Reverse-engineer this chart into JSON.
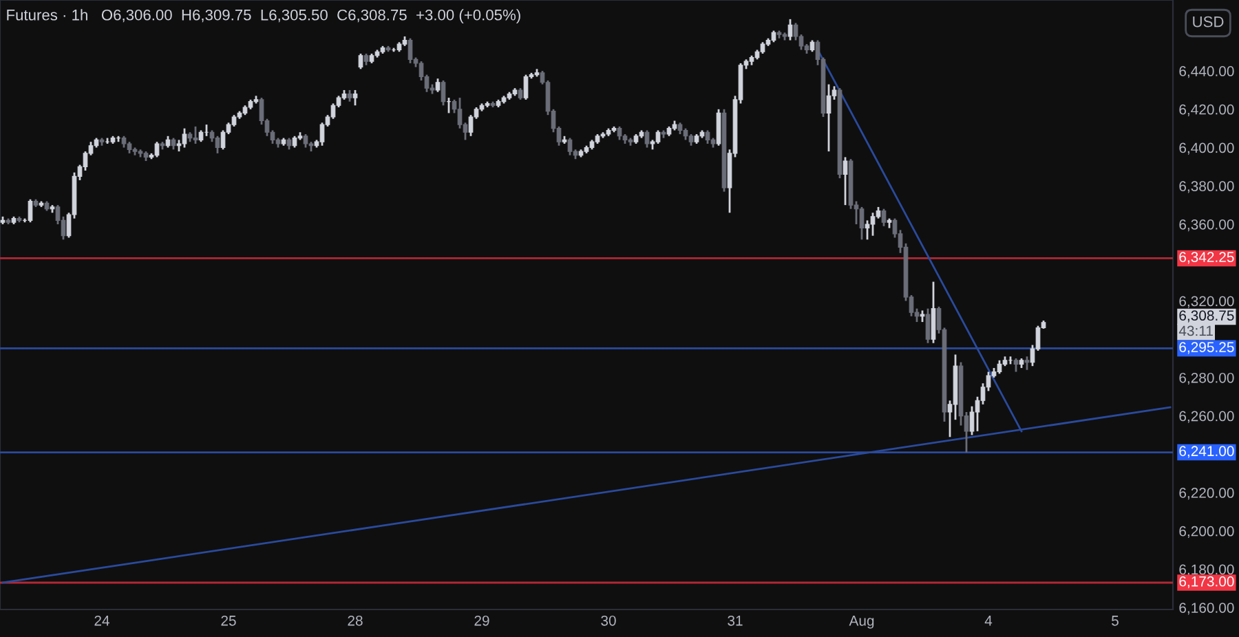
{
  "chart_data": {
    "type": "candlestick",
    "title": "Futures · 1h",
    "subtitle": "O6,306.00  H6,309.75  L6,305.50  C6,308.75  +3.00 (+0.05%)",
    "categories": [
      null,
      null,
      null,
      null,
      null,
      null,
      null,
      null,
      null,
      null,
      null,
      null,
      null,
      null,
      null,
      null,
      null,
      null,
      "24",
      null,
      null,
      null,
      null,
      null,
      null,
      null,
      null,
      null,
      null,
      null,
      null,
      null,
      null,
      null,
      null,
      null,
      null,
      null,
      null,
      null,
      null,
      "25",
      null,
      null,
      null,
      null,
      null,
      null,
      null,
      null,
      null,
      null,
      null,
      null,
      null,
      null,
      null,
      null,
      null,
      null,
      null,
      null,
      null,
      null,
      "28",
      null,
      null,
      null,
      null,
      null,
      null,
      null,
      null,
      null,
      null,
      null,
      null,
      null,
      null,
      null,
      null,
      null,
      null,
      null,
      null,
      null,
      null,
      "29",
      null,
      null,
      null,
      null,
      null,
      null,
      null,
      null,
      null,
      null,
      null,
      null,
      null,
      null,
      null,
      null,
      null,
      null,
      null,
      null,
      null,
      null,
      "30",
      null,
      null,
      null,
      null,
      null,
      null,
      null,
      null,
      null,
      null,
      null,
      null,
      null,
      null,
      null,
      null,
      null,
      null,
      null,
      null,
      null,
      null,
      "31",
      null,
      null,
      null,
      null,
      null,
      null,
      null,
      null,
      null,
      null,
      null,
      null,
      null,
      null,
      null,
      null,
      null,
      null,
      null,
      null,
      null,
      null,
      "Aug",
      null,
      null,
      null,
      null,
      null,
      null,
      null,
      null,
      null,
      null,
      null,
      null,
      null,
      null,
      null,
      null,
      null,
      null,
      null,
      null,
      null,
      null,
      "4",
      null,
      null,
      null,
      null,
      null,
      null,
      null,
      null,
      null,
      null,
      null,
      null,
      null,
      null,
      null,
      null,
      null,
      null,
      null,
      null,
      null,
      null,
      "5",
      null,
      null,
      null,
      null,
      null,
      null,
      null,
      null,
      null,
      null
    ],
    "ohlc": [
      [
        6361,
        6364,
        6360,
        6362
      ],
      [
        6362,
        6363,
        6360,
        6361
      ],
      [
        6361,
        6364,
        6360,
        6363
      ],
      [
        6363,
        6364,
        6361,
        6362
      ],
      [
        6362,
        6363,
        6361,
        6362
      ],
      [
        6362,
        6373,
        6361,
        6372
      ],
      [
        6372,
        6373,
        6369,
        6370
      ],
      [
        6370,
        6372,
        6369,
        6371
      ],
      [
        6371,
        6372,
        6367,
        6368
      ],
      [
        6368,
        6370,
        6366,
        6369
      ],
      [
        6369,
        6370,
        6360,
        6362
      ],
      [
        6362,
        6364,
        6352,
        6354
      ],
      [
        6354,
        6366,
        6353,
        6365
      ],
      [
        6365,
        6387,
        6363,
        6385
      ],
      [
        6385,
        6391,
        6383,
        6390
      ],
      [
        6390,
        6398,
        6388,
        6397
      ],
      [
        6397,
        6403,
        6396,
        6401
      ],
      [
        6401,
        6405,
        6400,
        6404
      ],
      [
        6404,
        6405,
        6401,
        6403
      ],
      [
        6403,
        6405,
        6402,
        6403
      ],
      [
        6403,
        6406,
        6402,
        6405
      ],
      [
        6405,
        6406,
        6403,
        6405
      ],
      [
        6405,
        6406,
        6400,
        6402
      ],
      [
        6402,
        6403,
        6397,
        6399
      ],
      [
        6399,
        6400,
        6396,
        6398
      ],
      [
        6398,
        6399,
        6395,
        6397
      ],
      [
        6397,
        6398,
        6393,
        6395
      ],
      [
        6395,
        6397,
        6394,
        6396
      ],
      [
        6396,
        6403,
        6395,
        6402
      ],
      [
        6402,
        6403,
        6399,
        6401
      ],
      [
        6401,
        6406,
        6400,
        6404
      ],
      [
        6404,
        6405,
        6399,
        6401
      ],
      [
        6401,
        6404,
        6398,
        6402
      ],
      [
        6402,
        6410,
        6400,
        6407
      ],
      [
        6407,
        6408,
        6403,
        6405
      ],
      [
        6405,
        6411,
        6402,
        6404
      ],
      [
        6404,
        6409,
        6403,
        6408
      ],
      [
        6408,
        6412,
        6406,
        6408
      ],
      [
        6408,
        6409,
        6403,
        6405
      ],
      [
        6405,
        6406,
        6397,
        6400
      ],
      [
        6400,
        6409,
        6399,
        6408
      ],
      [
        6408,
        6413,
        6407,
        6412
      ],
      [
        6412,
        6417,
        6411,
        6416
      ],
      [
        6416,
        6419,
        6415,
        6418
      ],
      [
        6418,
        6422,
        6417,
        6421
      ],
      [
        6421,
        6425,
        6420,
        6424
      ],
      [
        6424,
        6427,
        6423,
        6425
      ],
      [
        6425,
        6426,
        6412,
        6414
      ],
      [
        6414,
        6415,
        6406,
        6408
      ],
      [
        6408,
        6409,
        6402,
        6404
      ],
      [
        6404,
        6405,
        6400,
        6402
      ],
      [
        6402,
        6405,
        6401,
        6404
      ],
      [
        6404,
        6405,
        6399,
        6401
      ],
      [
        6401,
        6406,
        6400,
        6405
      ],
      [
        6405,
        6408,
        6404,
        6406
      ],
      [
        6406,
        6407,
        6400,
        6402
      ],
      [
        6402,
        6403,
        6398,
        6401
      ],
      [
        6401,
        6404,
        6400,
        6403
      ],
      [
        6403,
        6413,
        6401,
        6412
      ],
      [
        6412,
        6417,
        6411,
        6416
      ],
      [
        6416,
        6423,
        6415,
        6422
      ],
      [
        6422,
        6427,
        6421,
        6426
      ],
      [
        6426,
        6430,
        6425,
        6428
      ],
      [
        6428,
        6430,
        6424,
        6426
      ],
      [
        6426,
        6430,
        6422,
        6428
      ],
      [
        6442,
        6449,
        6441,
        6448
      ],
      [
        6448,
        6449,
        6443,
        6445
      ],
      [
        6445,
        6449,
        6444,
        6448
      ],
      [
        6448,
        6451,
        6447,
        6450
      ],
      [
        6450,
        6453,
        6449,
        6452
      ],
      [
        6452,
        6453,
        6450,
        6451
      ],
      [
        6451,
        6452,
        6450,
        6451
      ],
      [
        6451,
        6455,
        6450,
        6454
      ],
      [
        6454,
        6458,
        6453,
        6456
      ],
      [
        6456,
        6457,
        6444,
        6446
      ],
      [
        6446,
        6447,
        6442,
        6444
      ],
      [
        6444,
        6445,
        6435,
        6437
      ],
      [
        6437,
        6438,
        6429,
        6431
      ],
      [
        6431,
        6433,
        6428,
        6430
      ],
      [
        6430,
        6436,
        6429,
        6434
      ],
      [
        6434,
        6435,
        6422,
        6424
      ],
      [
        6424,
        6426,
        6418,
        6424
      ],
      [
        6424,
        6425,
        6418,
        6420
      ],
      [
        6420,
        6426,
        6410,
        6412
      ],
      [
        6412,
        6413,
        6404,
        6408
      ],
      [
        6408,
        6417,
        6406,
        6416
      ],
      [
        6416,
        6421,
        6415,
        6420
      ],
      [
        6420,
        6423,
        6419,
        6422
      ],
      [
        6422,
        6424,
        6421,
        6423
      ],
      [
        6423,
        6424,
        6421,
        6422
      ],
      [
        6422,
        6425,
        6421,
        6424
      ],
      [
        6424,
        6427,
        6423,
        6426
      ],
      [
        6426,
        6429,
        6425,
        6428
      ],
      [
        6428,
        6431,
        6427,
        6430
      ],
      [
        6430,
        6431,
        6425,
        6426
      ],
      [
        6426,
        6438,
        6425,
        6437
      ],
      [
        6437,
        6439,
        6436,
        6438
      ],
      [
        6438,
        6441,
        6437,
        6439
      ],
      [
        6439,
        6440,
        6433,
        6434
      ],
      [
        6434,
        6435,
        6417,
        6419
      ],
      [
        6419,
        6420,
        6408,
        6410
      ],
      [
        6410,
        6411,
        6401,
        6403
      ],
      [
        6403,
        6406,
        6402,
        6404
      ],
      [
        6404,
        6405,
        6396,
        6398
      ],
      [
        6398,
        6399,
        6394,
        6396
      ],
      [
        6396,
        6399,
        6395,
        6398
      ],
      [
        6398,
        6401,
        6397,
        6400
      ],
      [
        6400,
        6404,
        6399,
        6403
      ],
      [
        6403,
        6407,
        6402,
        6406
      ],
      [
        6406,
        6408,
        6405,
        6407
      ],
      [
        6407,
        6410,
        6406,
        6409
      ],
      [
        6409,
        6411,
        6408,
        6410
      ],
      [
        6410,
        6411,
        6404,
        6406
      ],
      [
        6406,
        6407,
        6402,
        6404
      ],
      [
        6404,
        6405,
        6401,
        6403
      ],
      [
        6403,
        6407,
        6402,
        6406
      ],
      [
        6406,
        6409,
        6405,
        6408
      ],
      [
        6408,
        6409,
        6400,
        6402
      ],
      [
        6402,
        6404,
        6399,
        6403
      ],
      [
        6403,
        6409,
        6402,
        6408
      ],
      [
        6408,
        6409,
        6405,
        6407
      ],
      [
        6407,
        6411,
        6406,
        6410
      ],
      [
        6410,
        6414,
        6409,
        6412
      ],
      [
        6412,
        6413,
        6407,
        6409
      ],
      [
        6409,
        6410,
        6404,
        6406
      ],
      [
        6406,
        6407,
        6401,
        6403
      ],
      [
        6403,
        6407,
        6402,
        6406
      ],
      [
        6406,
        6409,
        6405,
        6408
      ],
      [
        6408,
        6409,
        6402,
        6404
      ],
      [
        6404,
        6405,
        6400,
        6402
      ],
      [
        6402,
        6420,
        6401,
        6418
      ],
      [
        6418,
        6420,
        6377,
        6379
      ],
      [
        6379,
        6399,
        6366,
        6397
      ],
      [
        6397,
        6427,
        6395,
        6425
      ],
      [
        6425,
        6444,
        6423,
        6443
      ],
      [
        6443,
        6446,
        6441,
        6445
      ],
      [
        6445,
        6448,
        6443,
        6447
      ],
      [
        6447,
        6451,
        6446,
        6450
      ],
      [
        6450,
        6455,
        6449,
        6454
      ],
      [
        6454,
        6457,
        6453,
        6456
      ],
      [
        6456,
        6461,
        6455,
        6460
      ],
      [
        6460,
        6461,
        6457,
        6459
      ],
      [
        6459,
        6460,
        6456,
        6458
      ],
      [
        6458,
        6467,
        6456,
        6464
      ],
      [
        6464,
        6465,
        6456,
        6458
      ],
      [
        6458,
        6459,
        6451,
        6453
      ],
      [
        6453,
        6454,
        6449,
        6451
      ],
      [
        6451,
        6456,
        6450,
        6455
      ],
      [
        6455,
        6456,
        6443,
        6446
      ],
      [
        6446,
        6447,
        6416,
        6418
      ],
      [
        6418,
        6433,
        6398,
        6427
      ],
      [
        6427,
        6432,
        6425,
        6430
      ],
      [
        6430,
        6431,
        6384,
        6386
      ],
      [
        6386,
        6395,
        6370,
        6393
      ],
      [
        6393,
        6394,
        6368,
        6370
      ],
      [
        6370,
        6372,
        6360,
        6368
      ],
      [
        6368,
        6369,
        6352,
        6358
      ],
      [
        6358,
        6362,
        6352,
        6360
      ],
      [
        6360,
        6366,
        6354,
        6364
      ],
      [
        6364,
        6369,
        6363,
        6367
      ],
      [
        6367,
        6368,
        6359,
        6361
      ],
      [
        6361,
        6363,
        6358,
        6362
      ],
      [
        6362,
        6363,
        6353,
        6355
      ],
      [
        6355,
        6357,
        6345,
        6348
      ],
      [
        6348,
        6350,
        6320,
        6322
      ],
      [
        6322,
        6323,
        6312,
        6314
      ],
      [
        6314,
        6316,
        6309,
        6312
      ],
      [
        6312,
        6315,
        6309,
        6313
      ],
      [
        6313,
        6316,
        6298,
        6300
      ],
      [
        6300,
        6330,
        6298,
        6316
      ],
      [
        6316,
        6317,
        6303,
        6305
      ],
      [
        6305,
        6306,
        6257,
        6262
      ],
      [
        6262,
        6268,
        6249,
        6266
      ],
      [
        6266,
        6292,
        6258,
        6286
      ],
      [
        6286,
        6288,
        6255,
        6260
      ],
      [
        6260,
        6262,
        6241,
        6252
      ],
      [
        6252,
        6265,
        6250,
        6262
      ],
      [
        6262,
        6270,
        6252,
        6268
      ],
      [
        6268,
        6277,
        6266,
        6275
      ],
      [
        6275,
        6283,
        6273,
        6281
      ],
      [
        6281,
        6285,
        6280,
        6283
      ],
      [
        6283,
        6289,
        6282,
        6287
      ],
      [
        6287,
        6291,
        6286,
        6289
      ],
      [
        6289,
        6291,
        6287,
        6289
      ],
      [
        6289,
        6290,
        6283,
        6287
      ],
      [
        6287,
        6290,
        6285,
        6289
      ],
      [
        6289,
        6291,
        6284,
        6288
      ],
      [
        6288,
        6297,
        6286,
        6295
      ],
      [
        6295,
        6307,
        6294,
        6306
      ],
      [
        6306,
        6309.75,
        6305.5,
        6308.75
      ],
      null,
      null,
      null,
      null,
      null,
      null,
      null,
      null,
      null,
      null,
      null,
      null,
      null,
      null,
      null,
      null,
      null,
      null,
      null,
      null,
      null,
      null,
      null
    ],
    "colors": [
      "#d1d4dc",
      "#6b6e78",
      "#d1d4dc",
      "#6b6e78",
      "#d1d4dc",
      "#d1d4dc",
      "#6b6e78",
      "#d1d4dc",
      "#6b6e78",
      "#d1d4dc",
      "#6b6e78",
      "#6b6e78",
      "#d1d4dc",
      "#d1d4dc",
      "#d1d4dc",
      "#d1d4dc",
      "#d1d4dc",
      "#d1d4dc",
      "#6b6e78",
      "#d1d4dc",
      "#d1d4dc",
      "#d1d4dc",
      "#6b6e78",
      "#6b6e78",
      "#6b6e78",
      "#6b6e78",
      "#6b6e78",
      "#d1d4dc",
      "#d1d4dc",
      "#6b6e78",
      "#d1d4dc",
      "#6b6e78",
      "#d1d4dc",
      "#d1d4dc",
      "#6b6e78",
      "#6b6e78",
      "#d1d4dc",
      "#d1d4dc",
      "#6b6e78",
      "#6b6e78",
      "#d1d4dc",
      "#d1d4dc",
      "#d1d4dc",
      "#d1d4dc",
      "#d1d4dc",
      "#d1d4dc",
      "#d1d4dc",
      "#6b6e78",
      "#6b6e78",
      "#6b6e78",
      "#6b6e78",
      "#d1d4dc",
      "#6b6e78",
      "#d1d4dc",
      "#d1d4dc",
      "#6b6e78",
      "#6b6e78",
      "#d1d4dc",
      "#d1d4dc",
      "#d1d4dc",
      "#d1d4dc",
      "#d1d4dc",
      "#d1d4dc",
      "#6b6e78",
      "#d1d4dc",
      "#d1d4dc",
      "#6b6e78",
      "#d1d4dc",
      "#d1d4dc",
      "#d1d4dc",
      "#6b6e78",
      "#d1d4dc",
      "#d1d4dc",
      "#d1d4dc",
      "#6b6e78",
      "#6b6e78",
      "#6b6e78",
      "#6b6e78",
      "#6b6e78",
      "#d1d4dc",
      "#6b6e78",
      "#d1d4dc",
      "#6b6e78",
      "#6b6e78",
      "#6b6e78",
      "#d1d4dc",
      "#d1d4dc",
      "#d1d4dc",
      "#d1d4dc",
      "#6b6e78",
      "#d1d4dc",
      "#d1d4dc",
      "#d1d4dc",
      "#d1d4dc",
      "#6b6e78",
      "#d1d4dc",
      "#d1d4dc",
      "#d1d4dc",
      "#6b6e78",
      "#6b6e78",
      "#6b6e78",
      "#6b6e78",
      "#d1d4dc",
      "#6b6e78",
      "#6b6e78",
      "#d1d4dc",
      "#d1d4dc",
      "#d1d4dc",
      "#d1d4dc",
      "#d1d4dc",
      "#d1d4dc",
      "#d1d4dc",
      "#6b6e78",
      "#6b6e78",
      "#6b6e78",
      "#d1d4dc",
      "#d1d4dc",
      "#6b6e78",
      "#d1d4dc",
      "#d1d4dc",
      "#6b6e78",
      "#d1d4dc",
      "#d1d4dc",
      "#6b6e78",
      "#6b6e78",
      "#6b6e78",
      "#d1d4dc",
      "#d1d4dc",
      "#6b6e78",
      "#6b6e78",
      "#d1d4dc",
      "#6b6e78",
      "#d1d4dc",
      "#d1d4dc",
      "#d1d4dc",
      "#d1d4dc",
      "#d1d4dc",
      "#d1d4dc",
      "#d1d4dc",
      "#d1d4dc",
      "#d1d4dc",
      "#6b6e78",
      "#6b6e78",
      "#d1d4dc",
      "#6b6e78",
      "#6b6e78",
      "#6b6e78",
      "#d1d4dc",
      "#6b6e78",
      "#6b6e78",
      "#d1d4dc",
      "#d1d4dc",
      "#6b6e78",
      "#d1d4dc",
      "#6b6e78",
      "#6b6e78",
      "#6b6e78",
      "#d1d4dc",
      "#d1d4dc",
      "#d1d4dc",
      "#6b6e78",
      "#d1d4dc",
      "#6b6e78",
      "#6b6e78",
      "#6b6e78",
      "#6b6e78",
      "#6b6e78",
      "#d1d4dc",
      "#6b6e78",
      "#d1d4dc",
      "#6b6e78",
      "#6b6e78",
      "#d1d4dc",
      "#d1d4dc",
      "#6b6e78",
      "#6b6e78",
      "#d1d4dc",
      "#d1d4dc",
      "#d1d4dc",
      "#d1d4dc",
      "#d1d4dc",
      "#d1d4dc",
      "#d1d4dc",
      "#d1d4dc",
      "#6b6e78",
      "#d1d4dc",
      "#6b6e78",
      "#d1d4dc",
      "#d1d4dc",
      "#d1d4dc",
      null,
      null,
      null,
      null,
      null,
      null,
      null,
      null,
      null,
      null,
      null,
      null,
      null,
      null,
      null,
      null,
      null,
      null,
      null,
      null,
      null,
      null,
      null
    ],
    "series": [
      {
        "type": "line",
        "color": "#2a4a9c",
        "values": [
          null,
          null,
          null,
          null,
          null,
          null,
          null,
          null,
          null,
          null,
          null,
          null,
          null,
          null,
          null,
          null,
          null,
          null,
          null,
          null,
          null,
          null,
          null,
          null,
          null,
          null,
          null,
          null,
          null,
          null,
          null,
          null,
          null,
          null,
          null,
          null,
          null,
          null,
          null,
          null,
          null,
          null,
          null,
          null,
          null,
          null,
          null,
          null,
          null,
          null,
          null,
          null,
          null,
          null,
          null,
          null,
          null,
          null,
          null,
          null,
          null,
          null,
          null,
          null,
          null,
          null,
          null,
          null,
          null,
          null,
          null,
          null,
          null,
          null,
          null,
          null,
          null,
          null,
          null,
          null,
          null,
          null,
          null,
          null,
          null,
          null,
          null,
          null,
          null,
          null,
          null,
          null,
          null,
          null,
          null,
          null,
          null,
          null,
          null,
          null,
          null,
          null,
          null,
          null,
          null,
          null,
          null,
          null,
          null,
          null,
          null,
          null,
          null,
          null,
          null,
          null,
          null,
          null,
          null,
          null,
          null,
          null,
          null,
          null,
          null,
          null,
          null,
          null,
          null,
          null,
          null,
          null,
          null,
          null,
          null,
          null,
          null,
          null,
          null,
          null,
          null,
          null,
          null,
          null,
          null,
          null,
          null,
          null,
          6451,
          null,
          null,
          null,
          null,
          null,
          null,
          null,
          null,
          null,
          null,
          null,
          null,
          null,
          null,
          null,
          null,
          null,
          null,
          null,
          null,
          null,
          null,
          null,
          null,
          null,
          null,
          null,
          null,
          null,
          null,
          null,
          null,
          null,
          null,
          null,
          null,
          6252,
          null,
          null,
          null,
          null,
          null,
          null,
          null,
          null,
          null,
          null,
          null,
          null,
          null,
          null,
          null,
          null,
          null,
          null,
          null,
          null,
          null,
          null,
          null,
          null,
          null,
          null,
          null
        ]
      },
      {
        "type": "line",
        "color": "#2a4a9c",
        "values": [
          6173,
          null,
          null,
          null,
          null,
          null,
          null,
          null,
          null,
          null,
          null,
          null,
          null,
          null,
          null,
          null,
          null,
          null,
          null,
          null,
          null,
          null,
          null,
          null,
          null,
          null,
          null,
          null,
          null,
          null,
          null,
          null,
          null,
          null,
          null,
          null,
          null,
          null,
          null,
          null,
          null,
          null,
          null,
          null,
          null,
          null,
          null,
          null,
          null,
          null,
          null,
          null,
          null,
          null,
          null,
          null,
          null,
          null,
          null,
          null,
          null,
          null,
          null,
          null,
          null,
          null,
          null,
          null,
          null,
          null,
          null,
          null,
          null,
          null,
          null,
          null,
          null,
          null,
          null,
          null,
          null,
          null,
          null,
          null,
          null,
          null,
          null,
          null,
          null,
          null,
          null,
          null,
          null,
          null,
          null,
          null,
          null,
          null,
          null,
          null,
          null,
          null,
          null,
          null,
          null,
          null,
          null,
          null,
          null,
          null,
          null,
          null,
          null,
          null,
          null,
          null,
          null,
          null,
          null,
          null,
          null,
          null,
          null,
          null,
          null,
          null,
          null,
          null,
          null,
          null,
          null,
          null,
          null,
          null,
          null,
          null,
          null,
          null,
          null,
          null,
          null,
          null,
          null,
          null,
          null,
          null,
          null,
          null,
          null,
          null,
          null,
          null,
          null,
          null,
          null,
          null,
          null,
          null,
          null,
          null,
          null,
          null,
          null,
          null,
          null,
          null,
          null,
          null,
          null,
          null,
          null,
          null,
          null,
          null,
          null,
          null,
          null,
          null,
          null,
          null,
          null,
          null,
          null,
          null,
          null,
          null,
          null,
          null,
          null,
          null,
          null,
          null,
          null,
          null,
          null,
          null,
          null,
          null,
          null,
          null,
          null,
          null,
          null,
          null,
          null,
          null,
          null,
          null,
          null,
          null,
          null,
          null,
          6264.5
        ]
      }
    ],
    "ylim": [
      6159,
      6477
    ],
    "yticks": [
      {
        "value": 6160,
        "label": "6,160.00"
      },
      {
        "value": 6180,
        "label": "6,180.00"
      },
      {
        "value": 6200,
        "label": "6,200.00"
      },
      {
        "value": 6220,
        "label": "6,220.00"
      },
      {
        "value": 6260,
        "label": "6,260.00"
      },
      {
        "value": 6280,
        "label": "6,280.00"
      },
      {
        "value": 6320,
        "label": "6,320.00"
      },
      {
        "value": 6360,
        "label": "6,360.00"
      },
      {
        "value": 6380,
        "label": "6,380.00"
      },
      {
        "value": 6400,
        "label": "6,400.00"
      },
      {
        "value": 6420,
        "label": "6,420.00"
      },
      {
        "value": 6440,
        "label": "6,440.00"
      }
    ],
    "ref_lines": [
      {
        "axis": "y",
        "value": 6342.25,
        "label": "6,342.25",
        "color": "#b22833"
      },
      {
        "axis": "y",
        "value": 6295.25,
        "label": "6,295.25",
        "color": "#2a4a9c"
      },
      {
        "axis": "y",
        "value": 6241,
        "label": "6,241.00",
        "color": "#2a4a9c"
      },
      {
        "axis": "y",
        "value": 6173,
        "label": "6,173.00",
        "color": "#b22833"
      }
    ],
    "annotations": [
      "6,308.75",
      "43:11",
      "USD"
    ],
    "grid": false
  }
}
